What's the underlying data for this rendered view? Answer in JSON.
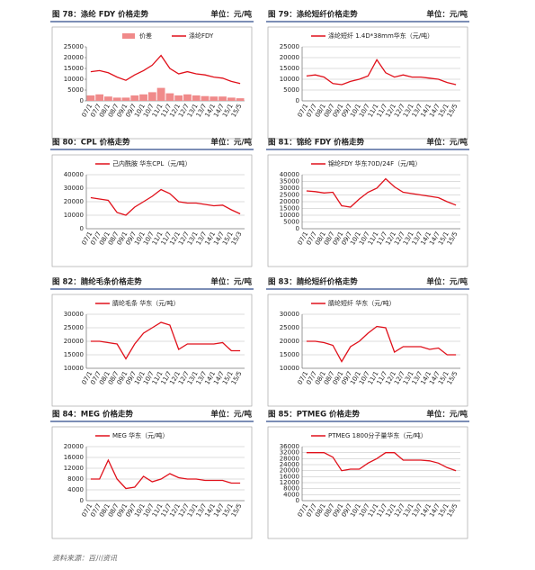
{
  "source": "资料来源：百川资讯",
  "chart_data": [
    {
      "type": "combo",
      "title": "图 78：涤纶 FDY 价格走势",
      "unit_label": "单位：元/吨",
      "categories": [
        "07/1",
        "07/7",
        "08/1",
        "08/7",
        "09/1",
        "09/7",
        "10/1",
        "10/7",
        "11/1",
        "11/7",
        "12/1",
        "12/7",
        "13/1",
        "13/7",
        "14/1",
        "14/7",
        "15/1",
        "15/5"
      ],
      "series": [
        {
          "name": "价差",
          "type": "bar",
          "color": "#f08a8a",
          "values": [
            2500,
            3000,
            2000,
            1500,
            1500,
            2500,
            3000,
            4000,
            6000,
            3500,
            2500,
            3000,
            2500,
            2200,
            2000,
            2000,
            1500,
            1200
          ]
        },
        {
          "name": "涤纶FDY",
          "type": "line",
          "color": "#e0101a",
          "values": [
            13500,
            14000,
            13000,
            11000,
            9500,
            12000,
            14000,
            16500,
            21000,
            15000,
            12500,
            13500,
            12500,
            12000,
            11000,
            10500,
            9000,
            8000
          ]
        }
      ],
      "ylim": [
        0,
        25000
      ],
      "yticks": [
        0,
        5000,
        10000,
        15000,
        20000,
        25000
      ],
      "grid": false
    },
    {
      "type": "line",
      "title": "图 79：涤纶短纤价格走势",
      "unit_label": "单位：元/吨",
      "categories": [
        "07/1",
        "07/7",
        "08/1",
        "08/7",
        "09/1",
        "09/7",
        "10/1",
        "10/7",
        "11/1",
        "11/7",
        "12/1",
        "12/7",
        "13/1",
        "13/7",
        "14/1",
        "14/7",
        "15/1",
        "15/5"
      ],
      "series": [
        {
          "name": "涤纶短纤 1.4D*38mm华东（元/吨）",
          "color": "#e0101a",
          "values": [
            11500,
            12000,
            11000,
            8000,
            7500,
            9000,
            10000,
            11500,
            19000,
            13000,
            11000,
            12000,
            11000,
            11000,
            10500,
            10000,
            8500,
            7500
          ]
        }
      ],
      "ylim": [
        0,
        25000
      ],
      "yticks": [
        0,
        5000,
        10000,
        15000,
        20000,
        25000
      ],
      "grid": true
    },
    {
      "type": "line",
      "title": "图 80：CPL 价格走势",
      "unit_label": "单位：元/吨",
      "categories": [
        "07/1",
        "07/7",
        "08/1",
        "08/7",
        "09/1",
        "09/7",
        "10/1",
        "10/7",
        "11/1",
        "11/7",
        "12/1",
        "12/7",
        "13/1",
        "13/7",
        "14/1",
        "14/7",
        "15/1",
        "15/3"
      ],
      "series": [
        {
          "name": "己内酰胺 华东CPL（元/吨）",
          "color": "#e0101a",
          "values": [
            23000,
            22000,
            21000,
            12000,
            10000,
            16000,
            20000,
            24000,
            29000,
            26000,
            20000,
            19000,
            19000,
            18000,
            17000,
            17500,
            14000,
            11000
          ]
        }
      ],
      "ylim": [
        0,
        40000
      ],
      "yticks": [
        0,
        10000,
        20000,
        30000,
        40000
      ],
      "grid": true
    },
    {
      "type": "line",
      "title": "图 81：锦纶 FDY 价格走势",
      "unit_label": "单位：元/吨",
      "categories": [
        "07/1",
        "07/7",
        "08/1",
        "08/7",
        "09/1",
        "09/7",
        "10/1",
        "10/7",
        "11/1",
        "11/7",
        "12/1",
        "12/7",
        "13/1",
        "13/7",
        "14/1",
        "14/7",
        "15/1",
        "15/5"
      ],
      "series": [
        {
          "name": "锦纶FDY 华东70D/24F（元/吨）",
          "color": "#e0101a",
          "values": [
            28000,
            27500,
            26500,
            27000,
            17000,
            16000,
            22000,
            27000,
            30000,
            37000,
            31000,
            27000,
            26000,
            25000,
            24000,
            23000,
            20000,
            17500
          ]
        }
      ],
      "ylim": [
        0,
        40000
      ],
      "yticks": [
        0,
        5000,
        10000,
        15000,
        20000,
        25000,
        30000,
        35000,
        40000
      ],
      "grid": true
    },
    {
      "type": "line",
      "title": "图 82：腈纶毛条价格走势",
      "unit_label": "单位：元/吨",
      "categories": [
        "07/1",
        "07/7",
        "08/1",
        "08/7",
        "09/1",
        "09/7",
        "10/1",
        "10/7",
        "11/1",
        "11/7",
        "12/1",
        "12/7",
        "13/1",
        "13/7",
        "14/1",
        "14/7",
        "15/1",
        "15/5"
      ],
      "series": [
        {
          "name": "腈纶毛条 华东（元/吨）",
          "color": "#e0101a",
          "values": [
            20000,
            20000,
            19500,
            19000,
            13500,
            19000,
            23000,
            25000,
            27000,
            26000,
            17000,
            19000,
            19000,
            19000,
            19000,
            19500,
            16500,
            16500
          ]
        }
      ],
      "ylim": [
        10000,
        30000
      ],
      "yticks": [
        10000,
        15000,
        20000,
        25000,
        30000
      ],
      "grid": true
    },
    {
      "type": "line",
      "title": "图 83：腈纶短纤价格走势",
      "unit_label": "单位：元/吨",
      "categories": [
        "07/1",
        "07/7",
        "08/1",
        "08/7",
        "09/1",
        "09/7",
        "10/1",
        "10/7",
        "11/1",
        "11/7",
        "12/1",
        "12/7",
        "13/1",
        "13/7",
        "14/1",
        "14/7",
        "15/1",
        "15/5"
      ],
      "series": [
        {
          "name": "腈纶短纤 华东（元/吨）",
          "color": "#e0101a",
          "values": [
            20000,
            20000,
            19500,
            18500,
            12500,
            18000,
            20000,
            23000,
            25500,
            25000,
            16000,
            18000,
            18000,
            18000,
            17000,
            17500,
            15000,
            15000
          ]
        }
      ],
      "ylim": [
        10000,
        30000
      ],
      "yticks": [
        10000,
        15000,
        20000,
        25000,
        30000
      ],
      "grid": true
    },
    {
      "type": "line",
      "title": "图 84：MEG 价格走势",
      "unit_label": "单位：元/吨",
      "categories": [
        "07/1",
        "07/7",
        "08/1",
        "08/7",
        "09/1",
        "09/7",
        "10/1",
        "10/7",
        "11/1",
        "11/7",
        "12/1",
        "12/7",
        "13/1",
        "13/7",
        "14/1",
        "14/7",
        "15/1",
        "15/5"
      ],
      "series": [
        {
          "name": "MEG 华东（元/吨）",
          "color": "#e0101a",
          "values": [
            8000,
            8000,
            15000,
            8000,
            4500,
            5000,
            9000,
            7000,
            8000,
            10000,
            8500,
            8000,
            8000,
            7500,
            7500,
            7500,
            6500,
            6500
          ]
        }
      ],
      "ylim": [
        0,
        20000
      ],
      "yticks": [
        0,
        4000,
        8000,
        12000,
        16000,
        20000
      ],
      "grid": true
    },
    {
      "type": "line",
      "title": "图 85：PTMEG 价格走势",
      "unit_label": "单位：元/吨",
      "categories": [
        "07/1",
        "07/7",
        "08/1",
        "08/7",
        "09/1",
        "09/7",
        "10/1",
        "10/7",
        "11/1",
        "11/7",
        "12/1",
        "12/7",
        "13/1",
        "13/7",
        "14/1",
        "14/7",
        "15/1",
        "15/5"
      ],
      "series": [
        {
          "name": "PTMEG 1800分子量华东（元/吨）",
          "color": "#e0101a",
          "values": [
            32000,
            32000,
            32000,
            29000,
            20000,
            21000,
            21000,
            25000,
            28000,
            32000,
            32000,
            27000,
            27000,
            27000,
            26500,
            25000,
            22000,
            20000
          ]
        }
      ],
      "ylim": [
        0,
        36000
      ],
      "yticks": [
        0,
        4000,
        8000,
        12000,
        16000,
        20000,
        24000,
        28000,
        32000,
        36000
      ],
      "grid": true
    }
  ]
}
